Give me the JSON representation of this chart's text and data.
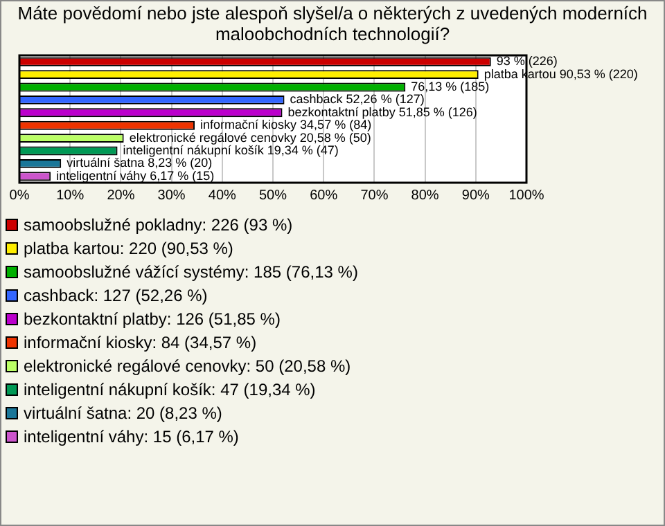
{
  "chart_data": {
    "type": "bar",
    "orientation": "horizontal",
    "stacked": true,
    "title": "Máte povědomí nebo jste alespoň slyšel/a o některých z uvedených moderních maloobchodních technologií?",
    "categories": [
      null,
      null,
      null,
      null,
      null,
      null,
      null,
      null,
      null,
      null
    ],
    "xlim": [
      0,
      100
    ],
    "xticks": [
      {
        "value": 0,
        "label": "0%"
      },
      {
        "value": 10,
        "label": "10%"
      },
      {
        "value": 20,
        "label": "20%"
      },
      {
        "value": 30,
        "label": "30%"
      },
      {
        "value": 40,
        "label": "40%"
      },
      {
        "value": 50,
        "label": "50%"
      },
      {
        "value": 60,
        "label": "60%"
      },
      {
        "value": 70,
        "label": "70%"
      },
      {
        "value": 80,
        "label": "80%"
      },
      {
        "value": 90,
        "label": "90%"
      },
      {
        "value": 100,
        "label": "100%"
      }
    ],
    "grid": "x",
    "legend": "bottom",
    "tick_labels": "x",
    "series": [
      {
        "name": "samoobslužné pokladny: 226 (93 %)",
        "color": "#cc0000",
        "values": [
          93,
          null,
          null,
          null,
          null,
          null,
          null,
          null,
          null,
          null
        ],
        "value_labels": [
          "93 % (226)",
          null,
          null,
          null,
          null,
          null,
          null,
          null,
          null,
          null
        ]
      },
      {
        "name": "platba kartou: 220 (90,53 %)",
        "color": "#ffee00",
        "values": [
          null,
          90.53,
          null,
          null,
          null,
          null,
          null,
          null,
          null,
          null
        ],
        "value_labels": [
          null,
          "platba kartou 90,53 % (220)",
          null,
          null,
          null,
          null,
          null,
          null,
          null,
          null
        ]
      },
      {
        "name": "samoobslužné vážící systémy: 185 (76,13 %)",
        "color": "#00b000",
        "values": [
          null,
          null,
          76.13,
          null,
          null,
          null,
          null,
          null,
          null,
          null
        ],
        "value_labels": [
          null,
          null,
          "76,13 % (185)",
          null,
          null,
          null,
          null,
          null,
          null,
          null
        ]
      },
      {
        "name": "cashback: 127 (52,26 %)",
        "color": "#3366ff",
        "values": [
          null,
          null,
          null,
          52.26,
          null,
          null,
          null,
          null,
          null,
          null
        ],
        "value_labels": [
          null,
          null,
          null,
          "cashback 52,26 % (127)",
          null,
          null,
          null,
          null,
          null,
          null
        ]
      },
      {
        "name": "bezkontaktní platby: 126 (51,85 %)",
        "color": "#bb00cc",
        "values": [
          null,
          null,
          null,
          null,
          51.85,
          null,
          null,
          null,
          null,
          null
        ],
        "value_labels": [
          null,
          null,
          null,
          null,
          "bezkontaktní platby 51,85 % (126)",
          null,
          null,
          null,
          null,
          null
        ]
      },
      {
        "name": "informační kiosky: 84 (34,57 %)",
        "color": "#ee3300",
        "values": [
          null,
          null,
          null,
          null,
          null,
          34.57,
          null,
          null,
          null,
          null
        ],
        "value_labels": [
          null,
          null,
          null,
          null,
          null,
          "informační kiosky 34,57 % (84)",
          null,
          null,
          null,
          null
        ]
      },
      {
        "name": "elektronické regálové cenovky: 50 (20,58 %)",
        "color": "#bbff66",
        "values": [
          null,
          null,
          null,
          null,
          null,
          null,
          20.58,
          null,
          null,
          null
        ],
        "value_labels": [
          null,
          null,
          null,
          null,
          null,
          null,
          "elektronické regálové cenovky 20,58 % (50)",
          null,
          null,
          null
        ]
      },
      {
        "name": "inteligentní nákupní košík: 47 (19,34 %)",
        "color": "#009955",
        "values": [
          null,
          null,
          null,
          null,
          null,
          null,
          null,
          19.34,
          null,
          null
        ],
        "value_labels": [
          null,
          null,
          null,
          null,
          null,
          null,
          null,
          "inteligentní nákupní košík 19,34 % (47)",
          null,
          null
        ]
      },
      {
        "name": "virtuální šatna: 20 (8,23 %)",
        "color": "#1a7799",
        "values": [
          null,
          null,
          null,
          null,
          null,
          null,
          null,
          null,
          8.23,
          null
        ],
        "value_labels": [
          null,
          null,
          null,
          null,
          null,
          null,
          null,
          null,
          "virtuální šatna 8,23 % (20)",
          null
        ]
      },
      {
        "name": "inteligentní váhy: 15 (6,17 %)",
        "color": "#cc55cc",
        "values": [
          null,
          null,
          null,
          null,
          null,
          null,
          null,
          null,
          null,
          6.17
        ],
        "value_labels": [
          null,
          null,
          null,
          null,
          null,
          null,
          null,
          null,
          null,
          "inteligentní váhy 6,17 % (15)"
        ]
      }
    ]
  }
}
